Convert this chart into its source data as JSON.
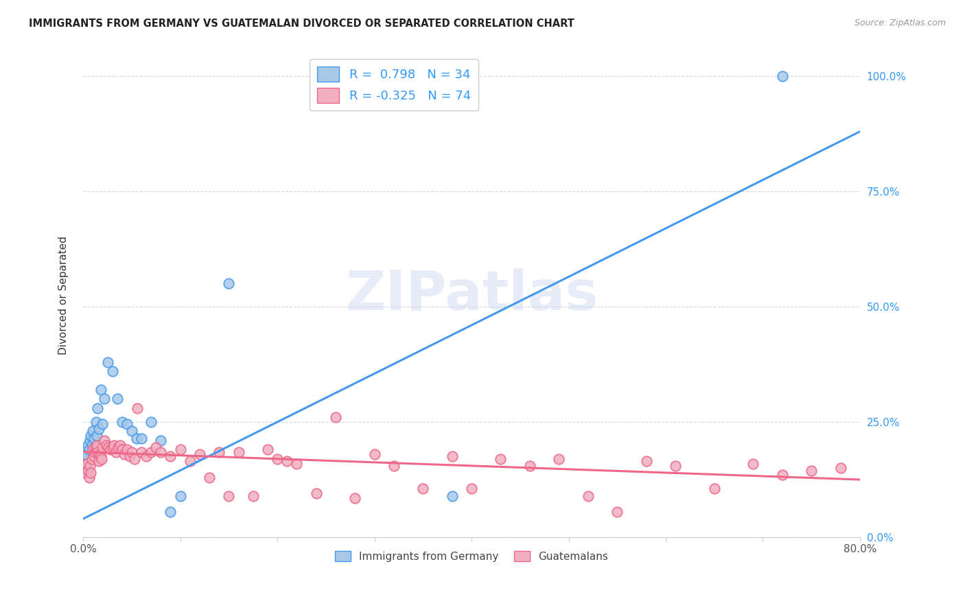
{
  "title": "IMMIGRANTS FROM GERMANY VS GUATEMALAN DIVORCED OR SEPARATED CORRELATION CHART",
  "source": "Source: ZipAtlas.com",
  "ylabel": "Divorced or Separated",
  "legend_label1": "Immigrants from Germany",
  "legend_label2": "Guatemalans",
  "r1": 0.798,
  "n1": 34,
  "r2": -0.325,
  "n2": 74,
  "color_blue_fill": "#a8c8e8",
  "color_pink_fill": "#f0b0c0",
  "color_blue_edge": "#4499ee",
  "color_pink_edge": "#ee6688",
  "color_blue_line": "#4499ee",
  "color_pink_line": "#ee6688",
  "color_blue_text": "#3399ff",
  "watermark": "ZIPatlas",
  "blue_scatter_x": [
    0.001,
    0.002,
    0.003,
    0.004,
    0.005,
    0.006,
    0.007,
    0.008,
    0.009,
    0.01,
    0.011,
    0.012,
    0.013,
    0.014,
    0.015,
    0.016,
    0.018,
    0.02,
    0.022,
    0.025,
    0.03,
    0.035,
    0.04,
    0.045,
    0.05,
    0.055,
    0.06,
    0.07,
    0.08,
    0.09,
    0.1,
    0.15,
    0.38,
    0.72
  ],
  "blue_scatter_y": [
    0.15,
    0.17,
    0.18,
    0.16,
    0.2,
    0.19,
    0.21,
    0.22,
    0.2,
    0.23,
    0.215,
    0.195,
    0.25,
    0.22,
    0.28,
    0.235,
    0.32,
    0.245,
    0.3,
    0.38,
    0.36,
    0.3,
    0.25,
    0.245,
    0.23,
    0.215,
    0.215,
    0.25,
    0.21,
    0.055,
    0.09,
    0.55,
    0.09,
    1.0
  ],
  "pink_scatter_x": [
    0.001,
    0.002,
    0.003,
    0.004,
    0.005,
    0.006,
    0.007,
    0.008,
    0.009,
    0.01,
    0.011,
    0.012,
    0.013,
    0.014,
    0.015,
    0.016,
    0.017,
    0.018,
    0.019,
    0.02,
    0.022,
    0.024,
    0.026,
    0.028,
    0.03,
    0.032,
    0.034,
    0.036,
    0.038,
    0.04,
    0.042,
    0.045,
    0.048,
    0.05,
    0.053,
    0.056,
    0.06,
    0.065,
    0.07,
    0.075,
    0.08,
    0.09,
    0.1,
    0.11,
    0.12,
    0.13,
    0.14,
    0.15,
    0.16,
    0.175,
    0.19,
    0.2,
    0.21,
    0.22,
    0.24,
    0.26,
    0.28,
    0.3,
    0.32,
    0.35,
    0.38,
    0.4,
    0.43,
    0.46,
    0.49,
    0.52,
    0.55,
    0.58,
    0.61,
    0.65,
    0.69,
    0.72,
    0.75,
    0.78
  ],
  "pink_scatter_y": [
    0.15,
    0.14,
    0.155,
    0.16,
    0.145,
    0.13,
    0.155,
    0.14,
    0.17,
    0.19,
    0.175,
    0.185,
    0.195,
    0.2,
    0.185,
    0.165,
    0.18,
    0.175,
    0.17,
    0.195,
    0.21,
    0.2,
    0.195,
    0.19,
    0.195,
    0.2,
    0.185,
    0.195,
    0.2,
    0.19,
    0.18,
    0.19,
    0.175,
    0.185,
    0.17,
    0.28,
    0.185,
    0.175,
    0.185,
    0.195,
    0.185,
    0.175,
    0.19,
    0.165,
    0.18,
    0.13,
    0.185,
    0.09,
    0.185,
    0.09,
    0.19,
    0.17,
    0.165,
    0.16,
    0.095,
    0.26,
    0.085,
    0.18,
    0.155,
    0.105,
    0.175,
    0.105,
    0.17,
    0.155,
    0.17,
    0.09,
    0.055,
    0.165,
    0.155,
    0.105,
    0.16,
    0.135,
    0.145,
    0.15
  ],
  "xlim": [
    0.0,
    0.8
  ],
  "ylim": [
    0.0,
    1.05
  ],
  "yticks": [
    0.0,
    0.25,
    0.5,
    0.75,
    1.0
  ],
  "ytick_labels": [
    "0.0%",
    "25.0%",
    "50.0%",
    "75.0%",
    "100.0%"
  ],
  "blue_line_x0": 0.0,
  "blue_line_x1": 0.8,
  "blue_line_y0": 0.04,
  "blue_line_y1": 0.88,
  "pink_line_x0": 0.0,
  "pink_line_x1": 0.8,
  "pink_line_y0": 0.185,
  "pink_line_y1": 0.125
}
